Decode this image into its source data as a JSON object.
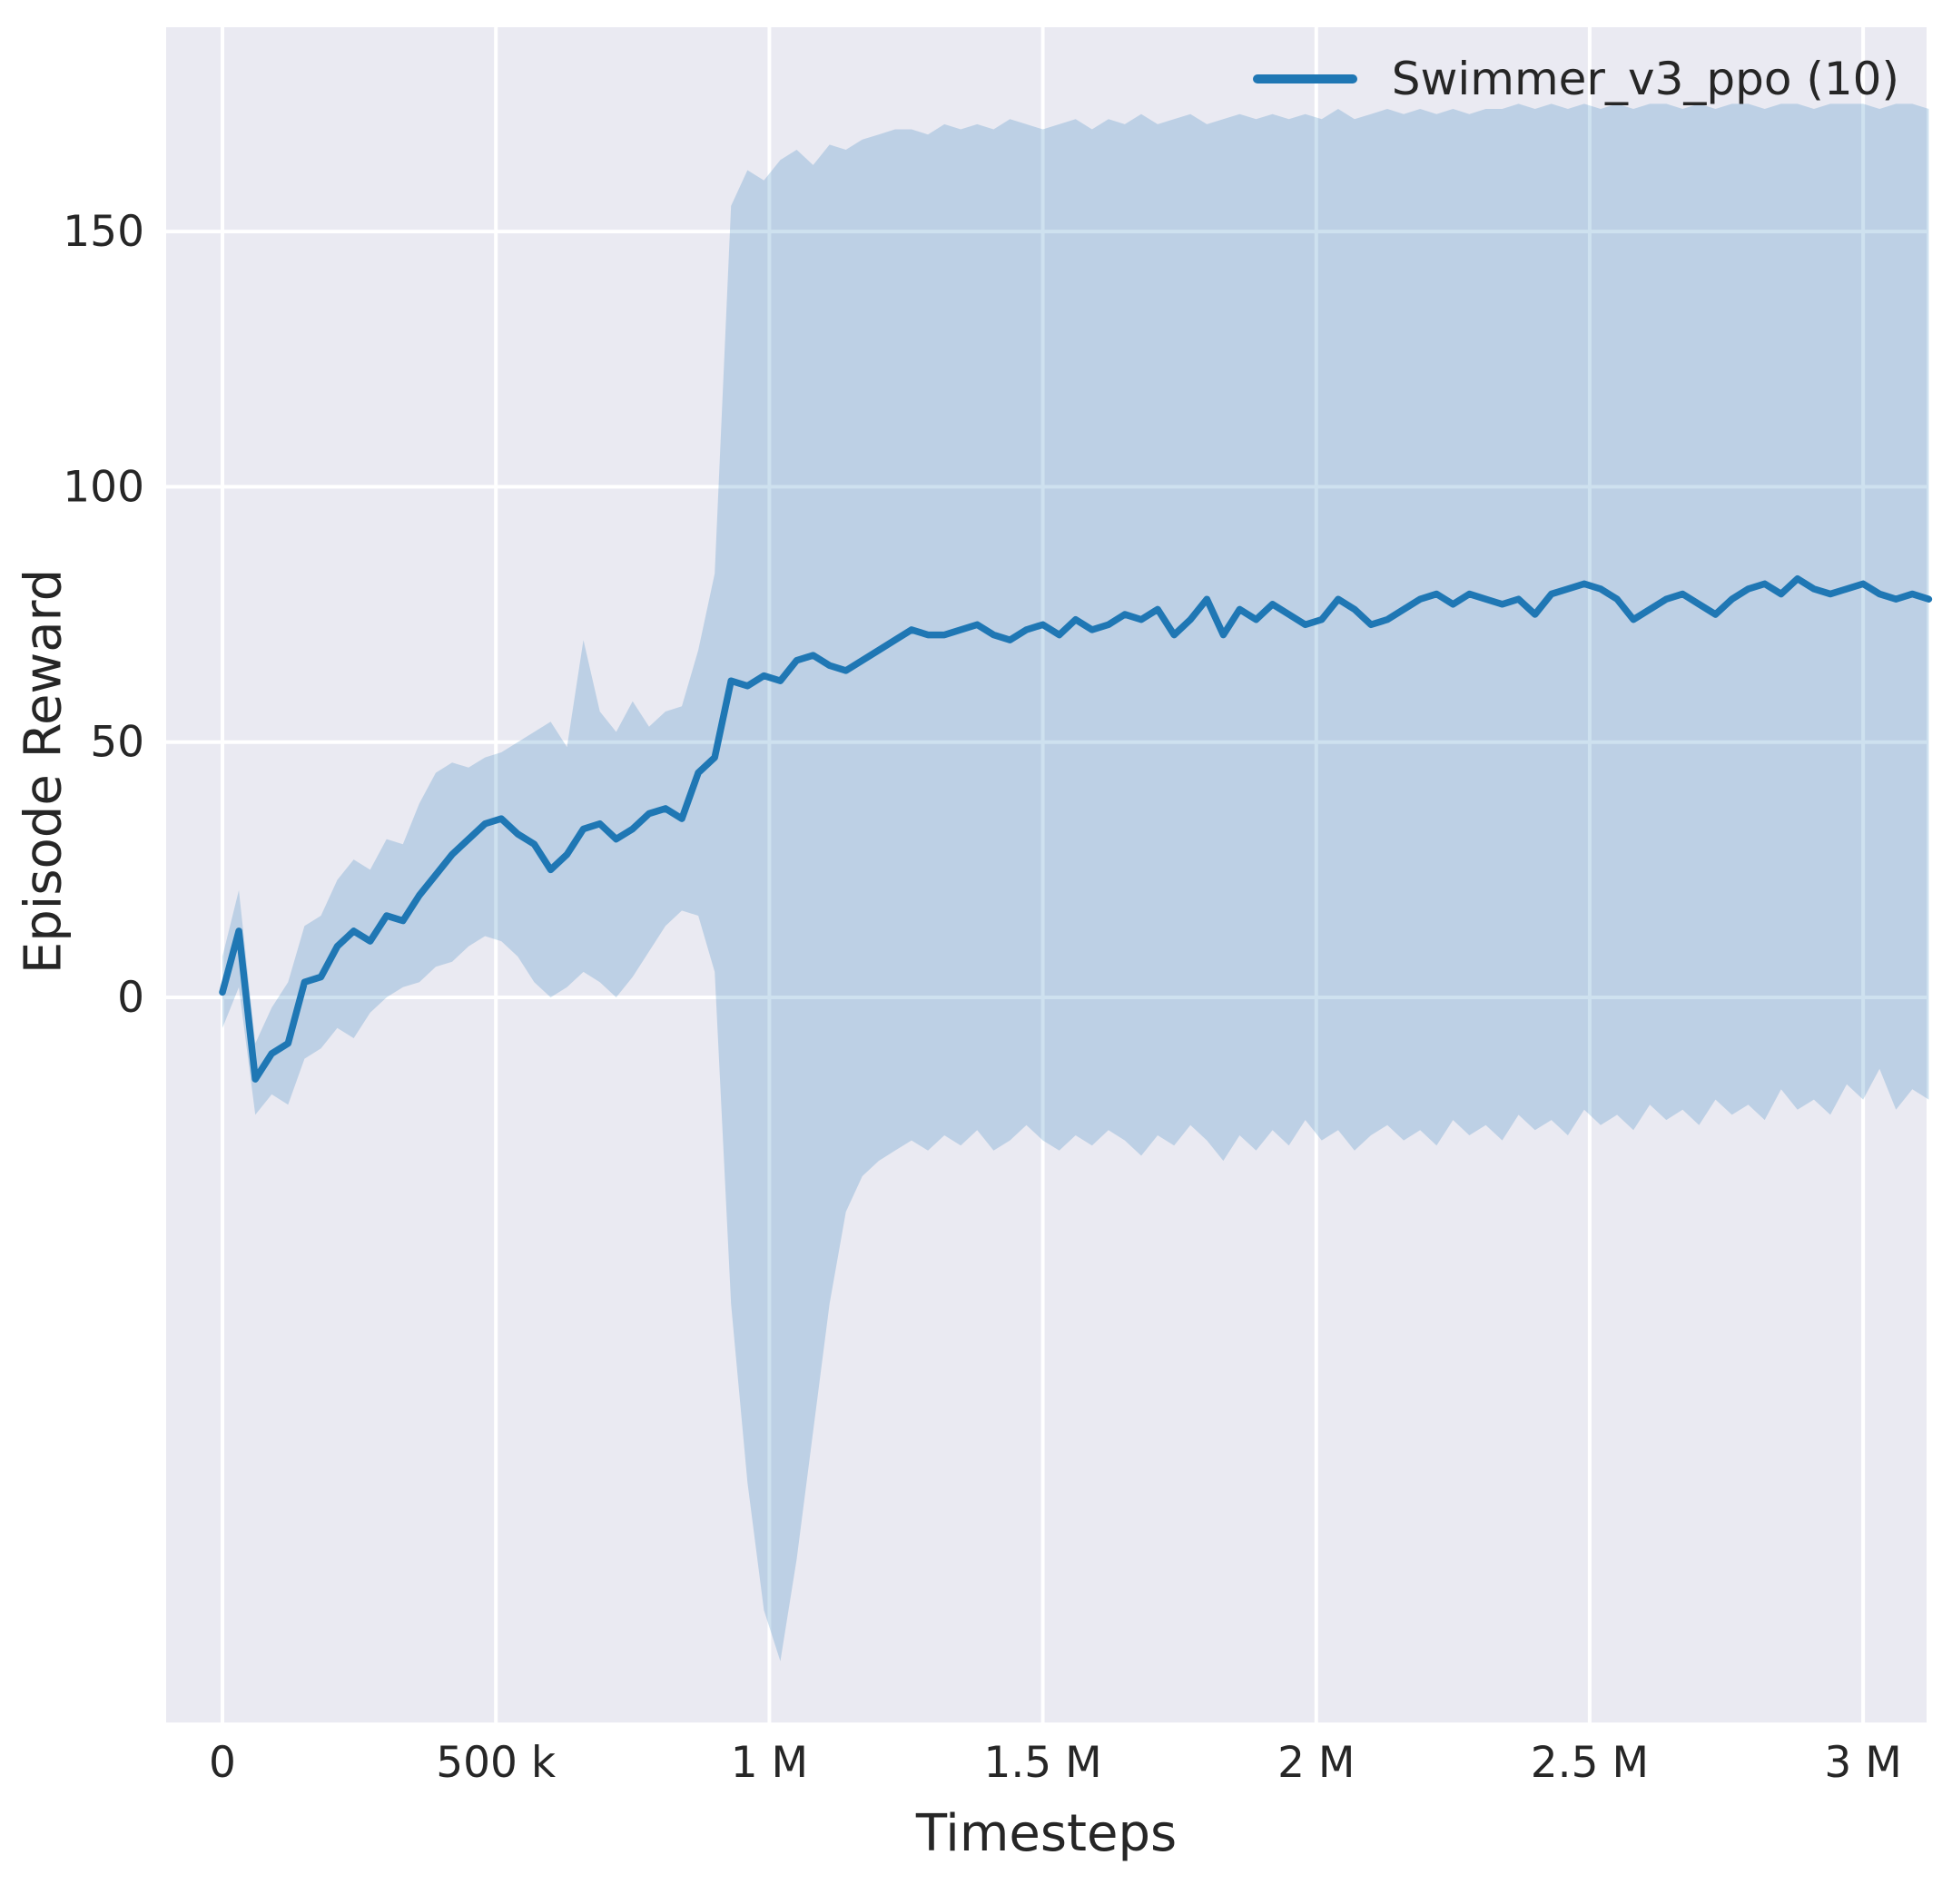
{
  "figure": {
    "background": "#ffffff",
    "plot_background": "#eaeaf2",
    "grid_color": "#ffffff",
    "text_color": "#262626"
  },
  "chart_data": {
    "type": "line",
    "xlabel": "Timesteps",
    "ylabel": "Episode Reward",
    "xlim": [
      -103000,
      3116000
    ],
    "ylim": [
      -142,
      190
    ],
    "grid": true,
    "x_ticks": [
      {
        "value": 0,
        "label": "0"
      },
      {
        "value": 500000,
        "label": "500 k"
      },
      {
        "value": 1000000,
        "label": "1 M"
      },
      {
        "value": 1500000,
        "label": "1.5 M"
      },
      {
        "value": 2000000,
        "label": "2 M"
      },
      {
        "value": 2500000,
        "label": "2.5 M"
      },
      {
        "value": 3000000,
        "label": "3 M"
      }
    ],
    "y_ticks": [
      {
        "value": 0,
        "label": "0"
      },
      {
        "value": 50,
        "label": "50"
      },
      {
        "value": 100,
        "label": "100"
      },
      {
        "value": 150,
        "label": "150"
      }
    ],
    "legend": {
      "location": "upper right",
      "entries": [
        {
          "label": "Swimmer_v3_ppo (10)",
          "color": "#1f77b4"
        }
      ]
    },
    "series": [
      {
        "name": "Swimmer_v3_ppo (10)",
        "color": "#1f77b4",
        "line_width": 7.5,
        "band_opacity": 0.22,
        "points_format": [
          "x",
          "band_lower",
          "mean",
          "band_upper"
        ],
        "points": [
          [
            0,
            -6,
            1,
            8
          ],
          [
            30000,
            2,
            13,
            21
          ],
          [
            60000,
            -23,
            -16,
            -9
          ],
          [
            90000,
            -19,
            -11,
            -2
          ],
          [
            120000,
            -21,
            -9,
            3
          ],
          [
            150000,
            -12,
            3,
            14
          ],
          [
            180000,
            -10,
            4,
            16
          ],
          [
            210000,
            -6,
            10,
            23
          ],
          [
            240000,
            -8,
            13,
            27
          ],
          [
            270000,
            -3,
            11,
            25
          ],
          [
            300000,
            0,
            16,
            31
          ],
          [
            330000,
            2,
            15,
            30
          ],
          [
            360000,
            3,
            20,
            38
          ],
          [
            390000,
            6,
            24,
            44
          ],
          [
            420000,
            7,
            28,
            46
          ],
          [
            450000,
            10,
            31,
            45
          ],
          [
            480000,
            12,
            34,
            47
          ],
          [
            510000,
            11,
            35,
            48
          ],
          [
            540000,
            8,
            32,
            50
          ],
          [
            570000,
            3,
            30,
            52
          ],
          [
            600000,
            0,
            25,
            54
          ],
          [
            630000,
            2,
            28,
            49
          ],
          [
            660000,
            5,
            33,
            70
          ],
          [
            690000,
            3,
            34,
            56
          ],
          [
            720000,
            0,
            31,
            52
          ],
          [
            750000,
            4,
            33,
            58
          ],
          [
            780000,
            9,
            36,
            53
          ],
          [
            810000,
            14,
            37,
            56
          ],
          [
            840000,
            17,
            35,
            57
          ],
          [
            870000,
            16,
            44,
            68
          ],
          [
            900000,
            5,
            47,
            83
          ],
          [
            930000,
            -60,
            62,
            155
          ],
          [
            960000,
            -95,
            61,
            162
          ],
          [
            990000,
            -120,
            63,
            160
          ],
          [
            1020000,
            -130,
            62,
            164
          ],
          [
            1050000,
            -110,
            66,
            166
          ],
          [
            1080000,
            -85,
            67,
            163
          ],
          [
            1110000,
            -60,
            65,
            167
          ],
          [
            1140000,
            -42,
            64,
            166
          ],
          [
            1170000,
            -35,
            66,
            168
          ],
          [
            1200000,
            -32,
            68,
            169
          ],
          [
            1230000,
            -30,
            70,
            170
          ],
          [
            1260000,
            -28,
            72,
            170
          ],
          [
            1290000,
            -30,
            71,
            169
          ],
          [
            1320000,
            -27,
            71,
            171
          ],
          [
            1350000,
            -29,
            72,
            170
          ],
          [
            1380000,
            -26,
            73,
            171
          ],
          [
            1410000,
            -30,
            71,
            170
          ],
          [
            1440000,
            -28,
            70,
            172
          ],
          [
            1470000,
            -25,
            72,
            171
          ],
          [
            1500000,
            -28,
            73,
            170
          ],
          [
            1530000,
            -30,
            71,
            171
          ],
          [
            1560000,
            -27,
            74,
            172
          ],
          [
            1590000,
            -29,
            72,
            170
          ],
          [
            1620000,
            -26,
            73,
            172
          ],
          [
            1650000,
            -28,
            75,
            171
          ],
          [
            1680000,
            -31,
            74,
            173
          ],
          [
            1710000,
            -27,
            76,
            171
          ],
          [
            1740000,
            -29,
            71,
            172
          ],
          [
            1770000,
            -25,
            74,
            173
          ],
          [
            1800000,
            -28,
            78,
            171
          ],
          [
            1830000,
            -32,
            71,
            172
          ],
          [
            1860000,
            -27,
            76,
            173
          ],
          [
            1890000,
            -30,
            74,
            172
          ],
          [
            1920000,
            -26,
            77,
            173
          ],
          [
            1950000,
            -29,
            75,
            172
          ],
          [
            1980000,
            -24,
            73,
            173
          ],
          [
            2010000,
            -28,
            74,
            172
          ],
          [
            2040000,
            -26,
            78,
            174
          ],
          [
            2070000,
            -30,
            76,
            172
          ],
          [
            2100000,
            -27,
            73,
            173
          ],
          [
            2130000,
            -25,
            74,
            174
          ],
          [
            2160000,
            -28,
            76,
            173
          ],
          [
            2190000,
            -26,
            78,
            174
          ],
          [
            2220000,
            -29,
            79,
            173
          ],
          [
            2250000,
            -24,
            77,
            174
          ],
          [
            2280000,
            -27,
            79,
            173
          ],
          [
            2310000,
            -25,
            78,
            174
          ],
          [
            2340000,
            -28,
            77,
            174
          ],
          [
            2370000,
            -23,
            78,
            175
          ],
          [
            2400000,
            -26,
            75,
            174
          ],
          [
            2430000,
            -24,
            79,
            175
          ],
          [
            2460000,
            -27,
            80,
            174
          ],
          [
            2490000,
            -22,
            81,
            175
          ],
          [
            2520000,
            -25,
            80,
            174
          ],
          [
            2550000,
            -23,
            78,
            175
          ],
          [
            2580000,
            -26,
            74,
            174
          ],
          [
            2610000,
            -21,
            76,
            175
          ],
          [
            2640000,
            -24,
            78,
            175
          ],
          [
            2670000,
            -22,
            79,
            174
          ],
          [
            2700000,
            -25,
            77,
            175
          ],
          [
            2730000,
            -20,
            75,
            174
          ],
          [
            2760000,
            -23,
            78,
            175
          ],
          [
            2790000,
            -21,
            80,
            175
          ],
          [
            2820000,
            -24,
            81,
            174
          ],
          [
            2850000,
            -18,
            79,
            175
          ],
          [
            2880000,
            -22,
            82,
            175
          ],
          [
            2910000,
            -20,
            80,
            174
          ],
          [
            2940000,
            -23,
            79,
            175
          ],
          [
            2970000,
            -17,
            80,
            175
          ],
          [
            3000000,
            -20,
            81,
            175
          ],
          [
            3030000,
            -14,
            79,
            174
          ],
          [
            3060000,
            -22,
            78,
            175
          ],
          [
            3090000,
            -18,
            79,
            175
          ],
          [
            3120000,
            -20,
            78,
            174
          ]
        ]
      }
    ]
  }
}
